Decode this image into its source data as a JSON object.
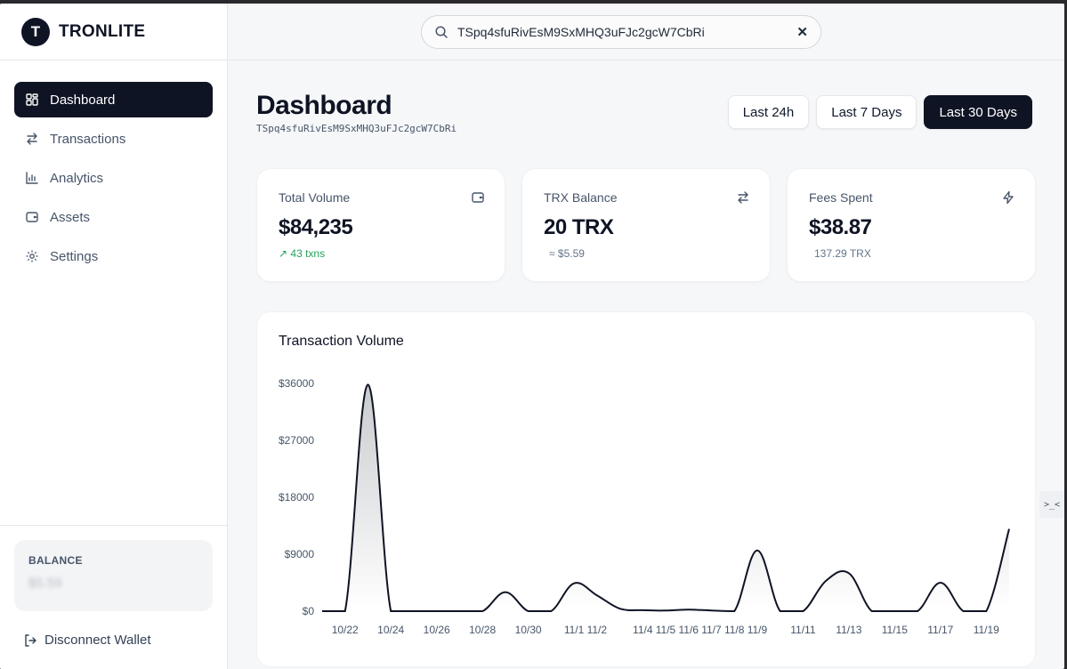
{
  "brand": {
    "logo_letter": "T",
    "name": "TRONLITE"
  },
  "nav": [
    {
      "label": "Dashboard",
      "icon": "dashboard-icon",
      "active": true
    },
    {
      "label": "Transactions",
      "icon": "transfer-icon",
      "active": false
    },
    {
      "label": "Analytics",
      "icon": "bar-chart-icon",
      "active": false
    },
    {
      "label": "Assets",
      "icon": "wallet-icon",
      "active": false
    },
    {
      "label": "Settings",
      "icon": "gear-icon",
      "active": false
    }
  ],
  "sidebar_bottom": {
    "balance_label": "BALANCE",
    "balance_value": "$5.59",
    "disconnect_label": "Disconnect Wallet"
  },
  "search": {
    "value": "TSpq4sfuRivEsM9SxMHQ3uFJc2gcW7CbRi"
  },
  "page": {
    "title": "Dashboard",
    "address": "TSpq4sfuRivEsM9SxMHQ3uFJc2gcW7CbRi"
  },
  "ranges": [
    {
      "label": "Last 24h",
      "active": false
    },
    {
      "label": "Last 7 Days",
      "active": false
    },
    {
      "label": "Last 30 Days",
      "active": true
    }
  ],
  "stats": [
    {
      "label": "Total Volume",
      "value": "$84,235",
      "sub": "↗ 43 txns",
      "icon": "wallet-icon"
    },
    {
      "label": "TRX Balance",
      "value": "20 TRX",
      "sub": "≈ $5.59",
      "icon": "transfer-icon"
    },
    {
      "label": "Fees Spent",
      "value": "$38.87",
      "sub": "137.29 TRX",
      "icon": "lightning-icon"
    }
  ],
  "chart_data": {
    "type": "area",
    "title": "Transaction Volume",
    "ylim": [
      0,
      36000
    ],
    "yticks": [
      0,
      9000,
      18000,
      27000,
      36000
    ],
    "ytick_labels": [
      "$0",
      "$9000",
      "$18000",
      "$27000",
      "$36000"
    ],
    "x": [
      "10/21",
      "10/22",
      "10/23",
      "10/24",
      "10/25",
      "10/26",
      "10/27",
      "10/28",
      "10/29",
      "10/30",
      "10/31",
      "11/1",
      "11/2",
      "11/3",
      "11/4",
      "11/5",
      "11/6",
      "11/7",
      "11/8",
      "11/9",
      "11/10",
      "11/11",
      "11/12",
      "11/13",
      "11/14",
      "11/15",
      "11/16",
      "11/17",
      "11/18",
      "11/19",
      "11/20"
    ],
    "values": [
      0,
      0,
      35800,
      0,
      0,
      0,
      0,
      0,
      3000,
      0,
      0,
      4400,
      2500,
      400,
      150,
      100,
      250,
      100,
      0,
      9600,
      0,
      0,
      4800,
      6000,
      0,
      0,
      0,
      4500,
      0,
      0,
      13000
    ],
    "xtick_labels": [
      "10/22",
      "10/24",
      "10/26",
      "10/28",
      "10/30",
      "11/1",
      "11/2",
      "11/4",
      "11/5",
      "11/6",
      "11/7",
      "11/8",
      "11/9",
      "11/11",
      "11/13",
      "11/15",
      "11/17",
      "11/19"
    ],
    "grid": false,
    "color": "#0f1424"
  },
  "side_tab": {
    "label": ">_<"
  }
}
